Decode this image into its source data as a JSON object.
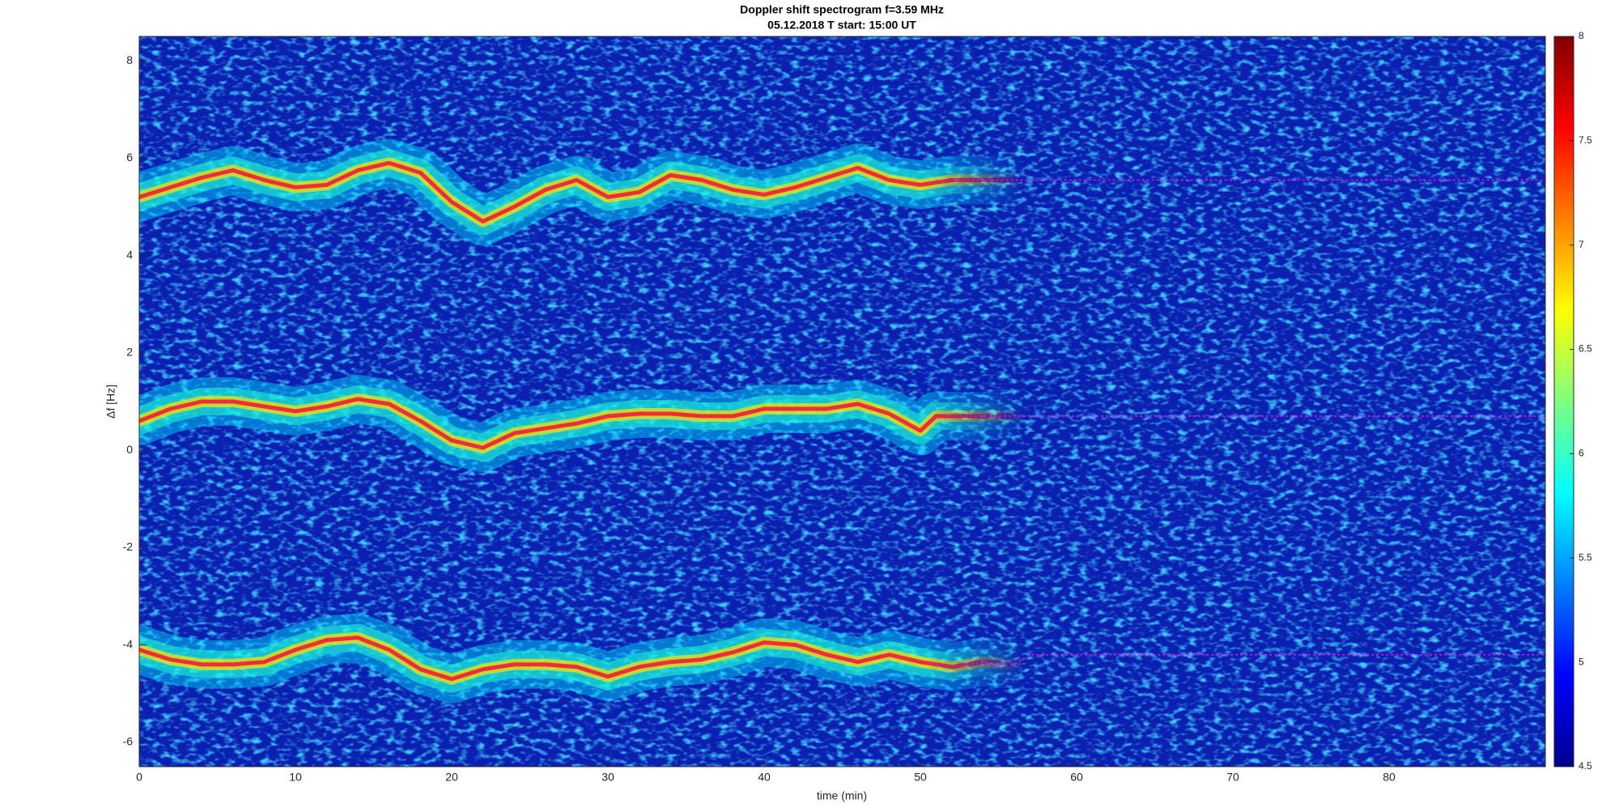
{
  "chart_data": {
    "type": "spectrogram",
    "title": "Doppler shift spectrogram f=3.59 MHz",
    "subtitle": "05.12.2018   T start: 15:00 UT",
    "x_label": "time (min)",
    "y_label": "Δf [Hz]",
    "xlim": [
      0,
      90
    ],
    "xticks": [
      0,
      10,
      20,
      30,
      40,
      50,
      60,
      70,
      80
    ],
    "ylim": [
      -6.5,
      8.5
    ],
    "yticks": [
      -6,
      -4,
      -2,
      0,
      2,
      4,
      6,
      8
    ],
    "colormap": "jet",
    "clim": [
      4.5,
      8
    ],
    "cticks": [
      4.5,
      5,
      5.5,
      6,
      6.5,
      7,
      7.5,
      8
    ],
    "series": [
      {
        "color": "#ff00ff",
        "x": [
          0,
          2,
          4,
          6,
          8,
          10,
          12,
          14,
          16,
          18,
          20,
          22,
          24,
          26,
          28,
          30,
          32,
          34,
          36,
          38,
          40,
          42,
          44,
          46,
          48,
          50,
          52,
          56,
          60,
          70,
          80,
          90
        ],
        "values": [
          5.2,
          5.4,
          5.6,
          5.75,
          5.55,
          5.4,
          5.45,
          5.75,
          5.9,
          5.7,
          5.1,
          4.7,
          5.0,
          5.35,
          5.55,
          5.2,
          5.3,
          5.65,
          5.55,
          5.35,
          5.25,
          5.4,
          5.6,
          5.8,
          5.55,
          5.45,
          5.55,
          5.55,
          5.55,
          5.55,
          5.55,
          5.55
        ]
      },
      {
        "color": "#ff00ff",
        "x": [
          0,
          2,
          4,
          6,
          8,
          10,
          12,
          14,
          16,
          18,
          20,
          22,
          24,
          26,
          28,
          30,
          32,
          34,
          36,
          38,
          40,
          42,
          44,
          46,
          48,
          50,
          51,
          56,
          70,
          90
        ],
        "values": [
          0.6,
          0.85,
          1.0,
          1.0,
          0.9,
          0.8,
          0.9,
          1.05,
          0.95,
          0.6,
          0.2,
          0.05,
          0.35,
          0.45,
          0.55,
          0.7,
          0.75,
          0.75,
          0.7,
          0.7,
          0.85,
          0.85,
          0.85,
          0.95,
          0.75,
          0.4,
          0.7,
          0.7,
          0.7,
          0.7
        ]
      },
      {
        "color": "#ff00ff",
        "x": [
          0,
          2,
          4,
          6,
          8,
          10,
          12,
          14,
          16,
          18,
          20,
          22,
          24,
          26,
          28,
          30,
          32,
          34,
          36,
          38,
          40,
          42,
          44,
          46,
          48,
          50,
          52,
          54,
          56,
          57,
          70,
          90
        ],
        "values": [
          -4.1,
          -4.3,
          -4.4,
          -4.4,
          -4.35,
          -4.1,
          -3.9,
          -3.85,
          -4.1,
          -4.5,
          -4.7,
          -4.5,
          -4.4,
          -4.4,
          -4.45,
          -4.65,
          -4.45,
          -4.35,
          -4.3,
          -4.15,
          -3.95,
          -4.0,
          -4.2,
          -4.35,
          -4.2,
          -4.35,
          -4.45,
          -4.35,
          -4.4,
          -4.2,
          -4.2,
          -4.2
        ]
      }
    ]
  }
}
